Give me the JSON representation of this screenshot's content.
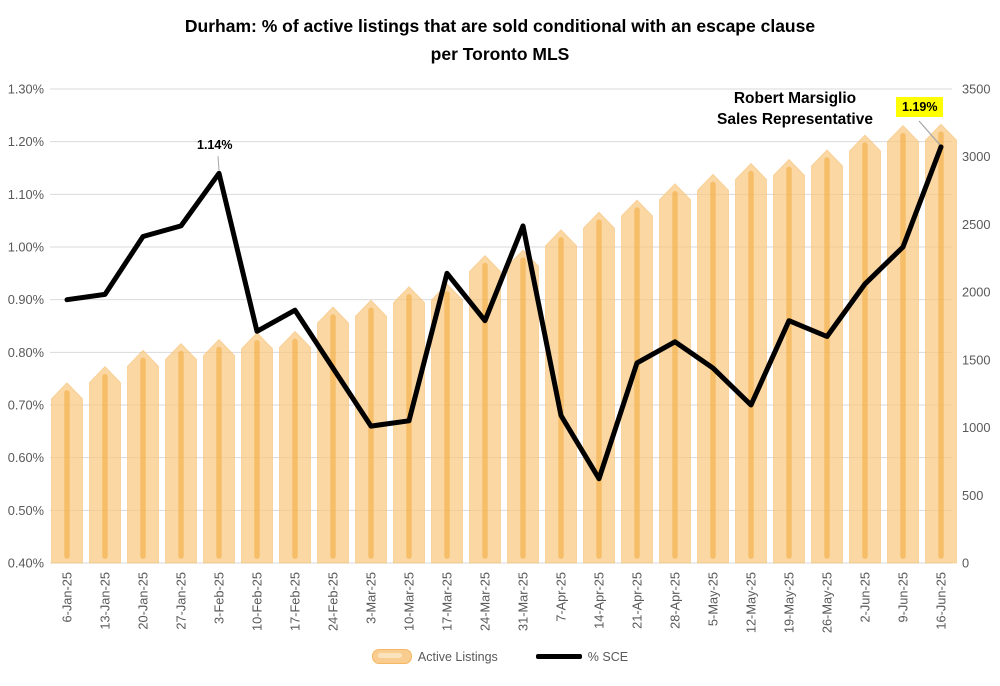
{
  "title": {
    "line1": "Durham: % of active listings that are sold conditional with an escape clause",
    "line2": "per Toronto MLS"
  },
  "watermark": {
    "line1": "Robert Marsiglio",
    "line2": "Sales Representative"
  },
  "annotations": [
    {
      "text": "1.14%",
      "index": 4,
      "highlighted": false
    },
    {
      "text": "1.19%",
      "index": 23,
      "highlighted": true,
      "highlight_color": "#FFFF00"
    }
  ],
  "legend": {
    "items": [
      {
        "label": "Active Listings",
        "type": "bar"
      },
      {
        "label": "% SCE",
        "type": "line"
      }
    ]
  },
  "colors": {
    "bar_fill": "#F8C87F",
    "bar_stroke": "#F6C074",
    "bar_stripe": "#F2A93B",
    "line": "#000000",
    "grid": "#D9D9D9",
    "axis_text": "#595959",
    "leader": "#A6A6A6",
    "title_text": "#000000"
  },
  "chart_data": {
    "type": "combo",
    "categories": [
      "6-Jan-25",
      "13-Jan-25",
      "20-Jan-25",
      "27-Jan-25",
      "3-Feb-25",
      "10-Feb-25",
      "17-Feb-25",
      "24-Feb-25",
      "3-Mar-25",
      "10-Mar-25",
      "17-Mar-25",
      "24-Mar-25",
      "31-Mar-25",
      "7-Apr-25",
      "14-Apr-25",
      "21-Apr-25",
      "28-Apr-25",
      "5-May-25",
      "12-May-25",
      "19-May-25",
      "26-May-25",
      "2-Jun-25",
      "9-Jun-25",
      "16-Jun-25"
    ],
    "series": [
      {
        "name": "Active Listings",
        "type": "bar",
        "axis": "right",
        "values": [
          1330,
          1450,
          1570,
          1620,
          1650,
          1700,
          1710,
          1890,
          1940,
          2040,
          2060,
          2270,
          2310,
          2460,
          2590,
          2680,
          2800,
          2870,
          2950,
          2980,
          3050,
          3160,
          3230,
          3240
        ]
      },
      {
        "name": "% SCE",
        "type": "line",
        "axis": "left",
        "values": [
          0.9,
          0.91,
          1.02,
          1.04,
          1.14,
          0.84,
          0.88,
          0.77,
          0.66,
          0.67,
          0.95,
          0.86,
          1.04,
          0.68,
          0.56,
          0.78,
          0.82,
          0.77,
          0.7,
          0.86,
          0.83,
          0.93,
          1.0,
          1.19
        ]
      }
    ],
    "left_axis": {
      "min": 0.4,
      "max": 1.3,
      "step": 0.1,
      "unit": "%",
      "ticks": [
        "1.30%",
        "1.20%",
        "1.10%",
        "1.00%",
        "0.90%",
        "0.80%",
        "0.70%",
        "0.60%",
        "0.50%",
        "0.40%"
      ]
    },
    "right_axis": {
      "min": 0,
      "max": 3500,
      "step": 500,
      "ticks": [
        "3500",
        "3000",
        "2500",
        "2000",
        "1500",
        "1000",
        "500",
        "0"
      ]
    },
    "grid": true,
    "legend_position": "bottom"
  }
}
